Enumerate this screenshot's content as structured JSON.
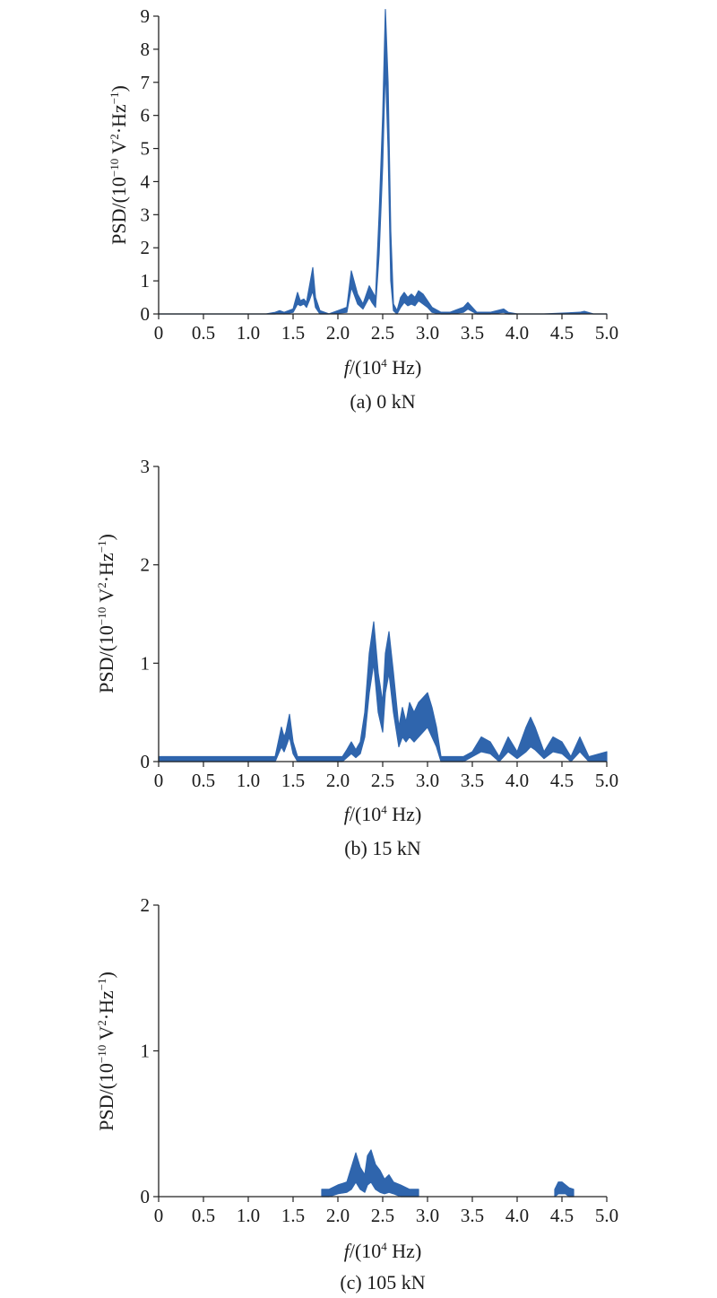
{
  "panels": [
    {
      "caption": "(a) 0 kN",
      "ylabel_main": "PSD/(10",
      "ylabel_exp1": "−10",
      "ylabel_mid": " V",
      "ylabel_exp2": "2",
      "ylabel_mid2": "·Hz",
      "ylabel_exp3": "−1",
      "ylabel_end": ")",
      "xlabel_main": "f",
      "xlabel_mid": "/(10",
      "xlabel_exp": "4",
      "xlabel_end": " Hz)"
    },
    {
      "caption": "(b) 15 kN",
      "ylabel_main": "PSD/(10",
      "ylabel_exp1": "−10",
      "ylabel_mid": " V",
      "ylabel_exp2": "2",
      "ylabel_mid2": "·Hz",
      "ylabel_exp3": "−1",
      "ylabel_end": ")",
      "xlabel_main": "f",
      "xlabel_mid": "/(10",
      "xlabel_exp": "4",
      "xlabel_end": " Hz)"
    },
    {
      "caption": "(c) 105 kN",
      "ylabel_main": "PSD/(10",
      "ylabel_exp1": "−10",
      "ylabel_mid": " V",
      "ylabel_exp2": "2",
      "ylabel_mid2": "·Hz",
      "ylabel_exp3": "−1",
      "ylabel_end": ")",
      "xlabel_main": "f",
      "xlabel_mid": "/(10",
      "xlabel_exp": "4",
      "xlabel_end": " Hz)"
    }
  ],
  "chart_data": [
    {
      "type": "area",
      "caption": "(a) 0 kN",
      "xlabel": "f/(10^4 Hz)",
      "ylabel": "PSD/(10^-10 V^2·Hz^-1)",
      "xlim": [
        0,
        5
      ],
      "ylim": [
        0,
        9
      ],
      "xticks": [
        "0",
        "0.5",
        "1.0",
        "1.5",
        "2.0",
        "2.5",
        "3.0",
        "3.5",
        "4.0",
        "4.5",
        "5.0"
      ],
      "yticks": [
        "0",
        "1",
        "2",
        "3",
        "4",
        "5",
        "6",
        "7",
        "8",
        "9"
      ],
      "color": "#2f65ad",
      "series": [
        {
          "x": [
            0,
            1.2,
            1.3,
            1.35,
            1.4,
            1.5,
            1.55,
            1.58,
            1.62,
            1.65,
            1.68,
            1.72,
            1.75,
            1.8,
            1.9,
            2.1,
            2.15,
            2.18,
            2.22,
            2.28,
            2.35,
            2.38,
            2.42,
            2.46,
            2.5,
            2.53,
            2.56,
            2.59,
            2.62,
            2.66,
            2.7,
            2.74,
            2.78,
            2.82,
            2.86,
            2.9,
            2.95,
            3.0,
            3.05,
            3.15,
            3.25,
            3.4,
            3.45,
            3.55,
            3.7,
            3.85,
            3.9,
            4.0,
            4.3,
            4.7,
            4.75,
            4.85,
            5.0
          ],
          "high": [
            0,
            0,
            0.05,
            0.1,
            0.05,
            0.15,
            0.65,
            0.4,
            0.45,
            0.35,
            0.8,
            1.4,
            0.5,
            0.1,
            0,
            0.2,
            1.3,
            1.0,
            0.6,
            0.3,
            0.85,
            0.7,
            0.5,
            3.0,
            6.0,
            9.2,
            7.0,
            2.5,
            0.3,
            0.1,
            0.5,
            0.65,
            0.5,
            0.6,
            0.5,
            0.7,
            0.6,
            0.4,
            0.2,
            0.05,
            0.05,
            0.2,
            0.35,
            0.05,
            0.05,
            0.15,
            0.05,
            0,
            0,
            0.05,
            0.08,
            0,
            0
          ],
          "low": [
            0,
            0,
            0,
            0.02,
            0,
            0.05,
            0.3,
            0.25,
            0.3,
            0.2,
            0.4,
            0.7,
            0.2,
            0,
            0,
            0.05,
            0.8,
            0.6,
            0.3,
            0.15,
            0.5,
            0.35,
            0.2,
            1.8,
            4.5,
            7.5,
            5.0,
            1.0,
            0.1,
            0,
            0.2,
            0.35,
            0.25,
            0.3,
            0.25,
            0.4,
            0.3,
            0.2,
            0.05,
            0,
            0,
            0.05,
            0.15,
            0,
            0,
            0.05,
            0,
            0,
            0,
            0,
            0.02,
            0,
            0
          ]
        }
      ]
    },
    {
      "type": "area",
      "caption": "(b) 15 kN",
      "xlabel": "f/(10^4 Hz)",
      "ylabel": "PSD/(10^-10 V^2·Hz^-1)",
      "xlim": [
        0,
        5
      ],
      "ylim": [
        0,
        3
      ],
      "xticks": [
        "0",
        "0.5",
        "1.0",
        "1.5",
        "2.0",
        "2.5",
        "3.0",
        "3.5",
        "4.0",
        "4.5",
        "5.0"
      ],
      "yticks": [
        "0",
        "1",
        "2",
        "3"
      ],
      "color": "#2f65ad",
      "series": [
        {
          "x": [
            0,
            1.3,
            1.37,
            1.4,
            1.42,
            1.46,
            1.5,
            1.55,
            2.05,
            2.1,
            2.15,
            2.2,
            2.25,
            2.3,
            2.35,
            2.4,
            2.45,
            2.5,
            2.53,
            2.57,
            2.62,
            2.68,
            2.72,
            2.76,
            2.8,
            2.85,
            2.9,
            2.95,
            3.0,
            3.05,
            3.1,
            3.15,
            3.4,
            3.5,
            3.6,
            3.7,
            3.8,
            3.9,
            4.0,
            4.1,
            4.15,
            4.2,
            4.3,
            4.4,
            4.5,
            4.6,
            4.7,
            4.8,
            5.0
          ],
          "high": [
            0.05,
            0.05,
            0.35,
            0.25,
            0.3,
            0.48,
            0.2,
            0.05,
            0.05,
            0.12,
            0.2,
            0.12,
            0.2,
            0.5,
            1.1,
            1.42,
            0.9,
            0.6,
            1.1,
            1.32,
            0.9,
            0.35,
            0.55,
            0.4,
            0.6,
            0.5,
            0.6,
            0.65,
            0.7,
            0.55,
            0.35,
            0.05,
            0.05,
            0.1,
            0.25,
            0.2,
            0.05,
            0.25,
            0.1,
            0.35,
            0.45,
            0.35,
            0.1,
            0.25,
            0.2,
            0.05,
            0.25,
            0.05,
            0.1
          ],
          "low": [
            0,
            0,
            0.15,
            0.1,
            0.15,
            0.25,
            0.08,
            0,
            0,
            0.04,
            0.08,
            0.04,
            0.08,
            0.25,
            0.7,
            1.0,
            0.5,
            0.3,
            0.7,
            0.9,
            0.5,
            0.15,
            0.25,
            0.2,
            0.25,
            0.2,
            0.25,
            0.3,
            0.35,
            0.25,
            0.15,
            0,
            0,
            0.05,
            0.1,
            0.08,
            0,
            0.1,
            0.03,
            0.1,
            0.15,
            0.12,
            0.03,
            0.1,
            0.08,
            0,
            0.1,
            0,
            0
          ]
        }
      ]
    },
    {
      "type": "area",
      "caption": "(c) 105 kN",
      "xlabel": "f/(10^4 Hz)",
      "ylabel": "PSD/(10^-10 V^2·Hz^-1)",
      "xlim": [
        0,
        5
      ],
      "ylim": [
        0,
        2
      ],
      "xticks": [
        "0",
        "0.5",
        "1.0",
        "1.5",
        "2.0",
        "2.5",
        "3.0",
        "3.5",
        "4.0",
        "4.5",
        "5.0"
      ],
      "yticks": [
        "0",
        "1",
        "2"
      ],
      "color": "#2f65ad",
      "series": [
        {
          "x": [
            1.82,
            1.9,
            2.0,
            2.1,
            2.15,
            2.2,
            2.25,
            2.3,
            2.33,
            2.37,
            2.42,
            2.47,
            2.52,
            2.57,
            2.62,
            2.7,
            2.8,
            2.9
          ],
          "high": [
            0.05,
            0.05,
            0.08,
            0.1,
            0.2,
            0.3,
            0.2,
            0.15,
            0.28,
            0.32,
            0.22,
            0.18,
            0.12,
            0.15,
            0.1,
            0.08,
            0.05,
            0.05
          ],
          "low": [
            0,
            0,
            0.02,
            0.03,
            0.05,
            0.1,
            0.05,
            0.03,
            0.08,
            0.1,
            0.05,
            0.03,
            0.02,
            0.03,
            0.02,
            0,
            0,
            0
          ]
        },
        {
          "x": [
            4.42,
            4.46,
            4.5,
            4.54,
            4.58,
            4.63
          ],
          "high": [
            0.05,
            0.1,
            0.1,
            0.08,
            0.06,
            0.05
          ],
          "low": [
            0,
            0.02,
            0.02,
            0.02,
            0,
            0
          ]
        }
      ]
    }
  ]
}
